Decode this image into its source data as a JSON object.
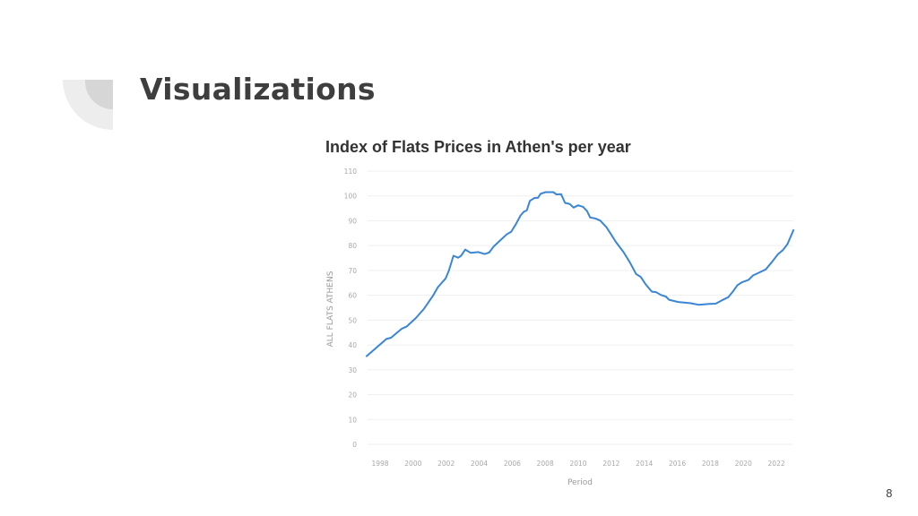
{
  "slide": {
    "title": "Visualizations",
    "page_number": "8"
  },
  "chart_data": {
    "type": "line",
    "title": "Index of Flats Prices in Athen's per year",
    "xlabel": "Period",
    "ylabel": "ALL FLATS  ATHENS",
    "ylim": [
      0,
      110
    ],
    "yticks": [
      0,
      10,
      20,
      30,
      40,
      50,
      60,
      70,
      80,
      90,
      100,
      110
    ],
    "xticks": [
      "1998",
      "2000",
      "2002",
      "2004",
      "2006",
      "2008",
      "2010",
      "2012",
      "2014",
      "2016",
      "2018",
      "2020",
      "2022"
    ],
    "grid": true,
    "line_color": "#3a86d4",
    "series": [
      {
        "x": [
          1997.15,
          1998.38,
          1998.66,
          1999.3,
          1999.6,
          2000.17,
          2000.65,
          2001.2,
          2001.5,
          2001.97,
          2002.16,
          2002.44,
          2002.73,
          2002.9,
          2003.16,
          2003.48,
          2003.95,
          2004.33,
          2004.6,
          2004.9,
          2005.28,
          2005.66,
          2005.94,
          2006.22,
          2006.5,
          2006.7,
          2006.88,
          2007.07,
          2007.36,
          2007.55,
          2007.73,
          2008.02,
          2008.49,
          2008.68,
          2008.96,
          2009.2,
          2009.47,
          2009.72,
          2010.0,
          2010.29,
          2010.53,
          2010.72,
          2011.04,
          2011.33,
          2011.7,
          2011.99,
          2012.27,
          2012.74,
          2013.12,
          2013.5,
          2013.78,
          2014.07,
          2014.45,
          2014.73,
          2015.01,
          2015.3,
          2015.49,
          2016.05,
          2016.81,
          2017.28,
          2017.94,
          2018.32,
          2018.7,
          2019.08,
          2019.36,
          2019.64,
          2019.93,
          2020.31,
          2020.59,
          2020.97,
          2021.35,
          2021.72,
          2022.1,
          2022.39,
          2022.67,
          2023.05
        ],
        "y": [
          35.3,
          42.4,
          42.9,
          46.5,
          47.4,
          50.9,
          54.5,
          59.8,
          63.3,
          66.8,
          69.8,
          75.9,
          75.1,
          75.9,
          78.4,
          77.1,
          77.4,
          76.6,
          77.2,
          79.8,
          82.1,
          84.5,
          85.6,
          88.6,
          92.1,
          93.6,
          94.2,
          98.0,
          99.2,
          99.2,
          100.9,
          101.5,
          101.5,
          100.6,
          100.7,
          97.2,
          96.8,
          95.3,
          96.2,
          95.6,
          93.9,
          91.3,
          90.9,
          90.1,
          87.4,
          84.5,
          81.5,
          77.4,
          73.3,
          68.6,
          67.4,
          64.5,
          61.5,
          61.2,
          60.1,
          59.5,
          58.2,
          57.3,
          56.8,
          56.2,
          56.5,
          56.6,
          58.0,
          59.2,
          61.5,
          64.1,
          65.3,
          66.2,
          68.0,
          69.2,
          70.4,
          73.3,
          76.6,
          78.2,
          80.6,
          86.5
        ]
      }
    ]
  }
}
